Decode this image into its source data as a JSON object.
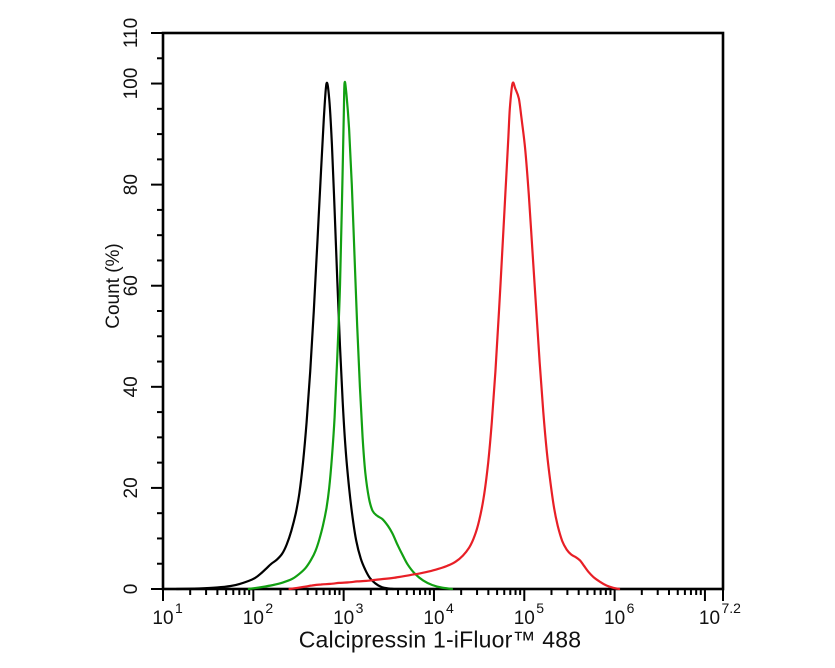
{
  "figure": {
    "background_color": "#ffffff",
    "axis_color": "#000000",
    "text_color": "#111111"
  },
  "chart_data": {
    "type": "line",
    "title": "",
    "xlabel": "Calcipressin 1-iFluor™ 488",
    "ylabel": "Count  (%)",
    "x_scale": "log10",
    "xlim_exp": [
      1,
      7.2
    ],
    "ylim": [
      0,
      110
    ],
    "grid": "off",
    "legend": "none",
    "x_ticks_labeled": [
      {
        "value_exp": 1,
        "base": "10",
        "exp": "1"
      },
      {
        "value_exp": 2,
        "base": "10",
        "exp": "2"
      },
      {
        "value_exp": 3,
        "base": "10",
        "exp": "3"
      },
      {
        "value_exp": 4,
        "base": "10",
        "exp": "4"
      },
      {
        "value_exp": 5,
        "base": "10",
        "exp": "5"
      },
      {
        "value_exp": 6,
        "base": "10",
        "exp": "6"
      },
      {
        "value_exp": 7.2,
        "base": "10",
        "exp": "7.2"
      }
    ],
    "x_major_ticks_exp": [
      1,
      2,
      3,
      4,
      5,
      6,
      7,
      7.2
    ],
    "x_minor_decades": [
      1,
      2,
      3,
      4,
      5,
      6
    ],
    "y_ticks_labeled": [
      0,
      20,
      40,
      60,
      80,
      100,
      110
    ],
    "y_minor_step": 5,
    "series": [
      {
        "name": "black-curve",
        "color": "#000000",
        "peak_exp": 2.81,
        "peak_pct": 100,
        "points": [
          [
            1.15,
            0
          ],
          [
            1.4,
            0.1
          ],
          [
            1.6,
            0.3
          ],
          [
            1.75,
            0.6
          ],
          [
            1.85,
            1.0
          ],
          [
            1.95,
            1.6
          ],
          [
            2.02,
            2.2
          ],
          [
            2.08,
            3.0
          ],
          [
            2.14,
            4.0
          ],
          [
            2.2,
            5.0
          ],
          [
            2.26,
            5.8
          ],
          [
            2.32,
            7.0
          ],
          [
            2.37,
            8.8
          ],
          [
            2.42,
            11.5
          ],
          [
            2.47,
            15
          ],
          [
            2.51,
            19
          ],
          [
            2.55,
            25
          ],
          [
            2.59,
            33
          ],
          [
            2.63,
            43
          ],
          [
            2.67,
            55
          ],
          [
            2.71,
            69
          ],
          [
            2.75,
            83
          ],
          [
            2.78,
            93
          ],
          [
            2.81,
            100
          ],
          [
            2.84,
            97
          ],
          [
            2.87,
            88
          ],
          [
            2.9,
            75
          ],
          [
            2.93,
            61
          ],
          [
            2.96,
            48
          ],
          [
            2.99,
            37
          ],
          [
            3.02,
            28
          ],
          [
            3.06,
            20
          ],
          [
            3.1,
            14
          ],
          [
            3.14,
            9.5
          ],
          [
            3.19,
            6.0
          ],
          [
            3.24,
            3.8
          ],
          [
            3.29,
            2.2
          ],
          [
            3.35,
            1.1
          ],
          [
            3.42,
            0.4
          ],
          [
            3.5,
            0.1
          ],
          [
            3.55,
            0
          ]
        ]
      },
      {
        "name": "green-curve",
        "color": "#12A012",
        "peak_exp": 3.0,
        "peak_pct": 100,
        "points": [
          [
            1.95,
            0
          ],
          [
            2.1,
            0.4
          ],
          [
            2.22,
            0.8
          ],
          [
            2.33,
            1.3
          ],
          [
            2.43,
            2.0
          ],
          [
            2.51,
            3.0
          ],
          [
            2.58,
            4.2
          ],
          [
            2.64,
            5.8
          ],
          [
            2.69,
            7.6
          ],
          [
            2.73,
            9.8
          ],
          [
            2.77,
            12.5
          ],
          [
            2.81,
            16
          ],
          [
            2.84,
            20
          ],
          [
            2.87,
            26
          ],
          [
            2.9,
            34
          ],
          [
            2.93,
            46
          ],
          [
            2.96,
            60
          ],
          [
            2.98,
            75
          ],
          [
            3.0,
            92
          ],
          [
            3.01,
            100
          ],
          [
            3.03,
            98
          ],
          [
            3.06,
            91
          ],
          [
            3.09,
            80
          ],
          [
            3.12,
            66
          ],
          [
            3.15,
            52
          ],
          [
            3.18,
            40
          ],
          [
            3.21,
            30
          ],
          [
            3.24,
            23
          ],
          [
            3.28,
            18
          ],
          [
            3.32,
            15.5
          ],
          [
            3.37,
            14.5
          ],
          [
            3.43,
            13.8
          ],
          [
            3.49,
            12.5
          ],
          [
            3.54,
            11
          ],
          [
            3.59,
            9
          ],
          [
            3.65,
            6.8
          ],
          [
            3.71,
            4.8
          ],
          [
            3.79,
            3.0
          ],
          [
            3.88,
            1.7
          ],
          [
            3.98,
            0.8
          ],
          [
            4.08,
            0.3
          ],
          [
            4.2,
            0
          ]
        ]
      },
      {
        "name": "red-curve",
        "color": "#E81F26",
        "peak_exp": 4.87,
        "peak_pct": 100,
        "points": [
          [
            2.4,
            0
          ],
          [
            2.55,
            0.4
          ],
          [
            2.65,
            0.7
          ],
          [
            2.75,
            0.9
          ],
          [
            2.85,
            1.0
          ],
          [
            2.95,
            1.2
          ],
          [
            3.05,
            1.3
          ],
          [
            3.15,
            1.5
          ],
          [
            3.25,
            1.6
          ],
          [
            3.35,
            1.8
          ],
          [
            3.45,
            2.0
          ],
          [
            3.55,
            2.2
          ],
          [
            3.65,
            2.5
          ],
          [
            3.75,
            2.8
          ],
          [
            3.85,
            3.1
          ],
          [
            3.95,
            3.5
          ],
          [
            4.05,
            4.0
          ],
          [
            4.15,
            4.6
          ],
          [
            4.24,
            5.4
          ],
          [
            4.32,
            6.6
          ],
          [
            4.39,
            8.2
          ],
          [
            4.45,
            10.5
          ],
          [
            4.5,
            13.5
          ],
          [
            4.55,
            18
          ],
          [
            4.6,
            25
          ],
          [
            4.64,
            33
          ],
          [
            4.68,
            43
          ],
          [
            4.72,
            55
          ],
          [
            4.76,
            68
          ],
          [
            4.79,
            78
          ],
          [
            4.82,
            88
          ],
          [
            4.84,
            95
          ],
          [
            4.87,
            100
          ],
          [
            4.9,
            99
          ],
          [
            4.94,
            97
          ],
          [
            4.97,
            93
          ],
          [
            5.01,
            87
          ],
          [
            5.05,
            78
          ],
          [
            5.09,
            67
          ],
          [
            5.13,
            56
          ],
          [
            5.17,
            45
          ],
          [
            5.21,
            35
          ],
          [
            5.25,
            27
          ],
          [
            5.29,
            21
          ],
          [
            5.33,
            16
          ],
          [
            5.37,
            12.5
          ],
          [
            5.42,
            9.5
          ],
          [
            5.47,
            7.8
          ],
          [
            5.52,
            6.8
          ],
          [
            5.57,
            6.3
          ],
          [
            5.62,
            5.6
          ],
          [
            5.66,
            4.6
          ],
          [
            5.71,
            3.4
          ],
          [
            5.77,
            2.3
          ],
          [
            5.84,
            1.4
          ],
          [
            5.91,
            0.7
          ],
          [
            5.98,
            0.25
          ],
          [
            6.05,
            0
          ]
        ]
      }
    ]
  }
}
